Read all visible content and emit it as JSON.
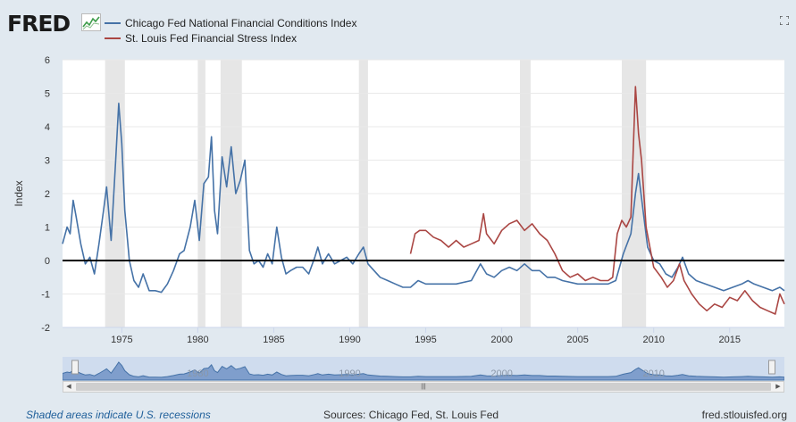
{
  "header": {
    "logo_text": "FRED",
    "legend": [
      {
        "label": "Chicago Fed National Financial Conditions Index",
        "color": "#4572a7"
      },
      {
        "label": "St. Louis Fed Financial Stress Index",
        "color": "#aa4643"
      }
    ]
  },
  "footer": {
    "recession_note": "Shaded areas indicate U.S. recessions",
    "sources": "Sources: Chicago Fed, St. Louis Fed",
    "site": "fred.stlouisfed.org"
  },
  "navigator": {
    "tick_labels": [
      "1980",
      "1990",
      "2000",
      "2010"
    ]
  },
  "chart_data": {
    "type": "line",
    "ylabel": "Index",
    "ylim": [
      -2,
      6
    ],
    "xlim": [
      1971.1,
      2018.6
    ],
    "y_ticks": [
      -2,
      -1,
      0,
      1,
      2,
      3,
      4,
      5,
      6
    ],
    "x_ticks": [
      1975,
      1980,
      1985,
      1990,
      1995,
      2000,
      2005,
      2010,
      2015
    ],
    "grid": "horizontal",
    "legend_position": "top-left",
    "recessions": [
      [
        1973.9,
        1975.2
      ],
      [
        1980.0,
        1980.5
      ],
      [
        1981.5,
        1982.9
      ],
      [
        1990.6,
        1991.2
      ],
      [
        2001.2,
        2001.9
      ],
      [
        2007.9,
        2009.5
      ]
    ],
    "series": [
      {
        "name": "Chicago Fed National Financial Conditions Index",
        "color": "#4572a7",
        "points": [
          [
            1971.1,
            0.5
          ],
          [
            1971.4,
            1.0
          ],
          [
            1971.6,
            0.8
          ],
          [
            1971.8,
            1.8
          ],
          [
            1972.0,
            1.3
          ],
          [
            1972.3,
            0.5
          ],
          [
            1972.6,
            -0.1
          ],
          [
            1972.9,
            0.1
          ],
          [
            1973.2,
            -0.4
          ],
          [
            1973.5,
            0.5
          ],
          [
            1973.8,
            1.5
          ],
          [
            1974.0,
            2.2
          ],
          [
            1974.3,
            0.6
          ],
          [
            1974.6,
            3.0
          ],
          [
            1974.8,
            4.7
          ],
          [
            1975.0,
            3.5
          ],
          [
            1975.2,
            1.5
          ],
          [
            1975.5,
            0.0
          ],
          [
            1975.8,
            -0.6
          ],
          [
            1976.1,
            -0.8
          ],
          [
            1976.4,
            -0.4
          ],
          [
            1976.8,
            -0.9
          ],
          [
            1977.2,
            -0.9
          ],
          [
            1977.6,
            -0.95
          ],
          [
            1978.0,
            -0.7
          ],
          [
            1978.4,
            -0.3
          ],
          [
            1978.8,
            0.2
          ],
          [
            1979.1,
            0.3
          ],
          [
            1979.5,
            1.0
          ],
          [
            1979.8,
            1.8
          ],
          [
            1980.1,
            0.6
          ],
          [
            1980.4,
            2.3
          ],
          [
            1980.7,
            2.5
          ],
          [
            1980.9,
            3.7
          ],
          [
            1981.1,
            1.5
          ],
          [
            1981.3,
            0.8
          ],
          [
            1981.6,
            3.1
          ],
          [
            1981.9,
            2.2
          ],
          [
            1982.2,
            3.4
          ],
          [
            1982.5,
            2.0
          ],
          [
            1982.8,
            2.4
          ],
          [
            1983.1,
            3.0
          ],
          [
            1983.4,
            0.3
          ],
          [
            1983.7,
            -0.1
          ],
          [
            1984.0,
            0.0
          ],
          [
            1984.3,
            -0.2
          ],
          [
            1984.6,
            0.2
          ],
          [
            1984.9,
            -0.1
          ],
          [
            1985.2,
            1.0
          ],
          [
            1985.5,
            0.1
          ],
          [
            1985.8,
            -0.4
          ],
          [
            1986.1,
            -0.3
          ],
          [
            1986.5,
            -0.2
          ],
          [
            1986.9,
            -0.2
          ],
          [
            1987.3,
            -0.4
          ],
          [
            1987.7,
            0.1
          ],
          [
            1987.9,
            0.4
          ],
          [
            1988.2,
            -0.1
          ],
          [
            1988.6,
            0.2
          ],
          [
            1989.0,
            -0.1
          ],
          [
            1989.4,
            0.0
          ],
          [
            1989.8,
            0.1
          ],
          [
            1990.2,
            -0.1
          ],
          [
            1990.6,
            0.2
          ],
          [
            1990.9,
            0.4
          ],
          [
            1991.2,
            -0.1
          ],
          [
            1991.6,
            -0.3
          ],
          [
            1992.0,
            -0.5
          ],
          [
            1992.5,
            -0.6
          ],
          [
            1993.0,
            -0.7
          ],
          [
            1993.5,
            -0.8
          ],
          [
            1994.0,
            -0.8
          ],
          [
            1994.5,
            -0.6
          ],
          [
            1995.0,
            -0.7
          ],
          [
            1996.0,
            -0.7
          ],
          [
            1997.0,
            -0.7
          ],
          [
            1998.0,
            -0.6
          ],
          [
            1998.6,
            -0.1
          ],
          [
            1999.0,
            -0.4
          ],
          [
            1999.5,
            -0.5
          ],
          [
            2000.0,
            -0.3
          ],
          [
            2000.5,
            -0.2
          ],
          [
            2001.0,
            -0.3
          ],
          [
            2001.5,
            -0.1
          ],
          [
            2002.0,
            -0.3
          ],
          [
            2002.5,
            -0.3
          ],
          [
            2003.0,
            -0.5
          ],
          [
            2003.5,
            -0.5
          ],
          [
            2004.0,
            -0.6
          ],
          [
            2005.0,
            -0.7
          ],
          [
            2006.0,
            -0.7
          ],
          [
            2007.0,
            -0.7
          ],
          [
            2007.5,
            -0.6
          ],
          [
            2008.0,
            0.2
          ],
          [
            2008.5,
            0.8
          ],
          [
            2008.8,
            2.0
          ],
          [
            2009.0,
            2.6
          ],
          [
            2009.3,
            1.5
          ],
          [
            2009.6,
            0.4
          ],
          [
            2010.0,
            0.0
          ],
          [
            2010.4,
            -0.1
          ],
          [
            2010.8,
            -0.4
          ],
          [
            2011.2,
            -0.5
          ],
          [
            2011.6,
            -0.2
          ],
          [
            2011.9,
            0.1
          ],
          [
            2012.3,
            -0.4
          ],
          [
            2012.8,
            -0.6
          ],
          [
            2013.4,
            -0.7
          ],
          [
            2014.0,
            -0.8
          ],
          [
            2014.6,
            -0.9
          ],
          [
            2015.2,
            -0.8
          ],
          [
            2015.8,
            -0.7
          ],
          [
            2016.2,
            -0.6
          ],
          [
            2016.6,
            -0.7
          ],
          [
            2017.2,
            -0.8
          ],
          [
            2017.8,
            -0.9
          ],
          [
            2018.3,
            -0.8
          ],
          [
            2018.6,
            -0.9
          ]
        ]
      },
      {
        "name": "St. Louis Fed Financial Stress Index",
        "color": "#aa4643",
        "points": [
          [
            1994.0,
            0.2
          ],
          [
            1994.3,
            0.8
          ],
          [
            1994.6,
            0.9
          ],
          [
            1995.0,
            0.9
          ],
          [
            1995.5,
            0.7
          ],
          [
            1996.0,
            0.6
          ],
          [
            1996.5,
            0.4
          ],
          [
            1997.0,
            0.6
          ],
          [
            1997.5,
            0.4
          ],
          [
            1998.0,
            0.5
          ],
          [
            1998.5,
            0.6
          ],
          [
            1998.8,
            1.4
          ],
          [
            1999.0,
            0.8
          ],
          [
            1999.5,
            0.5
          ],
          [
            2000.0,
            0.9
          ],
          [
            2000.5,
            1.1
          ],
          [
            2001.0,
            1.2
          ],
          [
            2001.5,
            0.9
          ],
          [
            2002.0,
            1.1
          ],
          [
            2002.5,
            0.8
          ],
          [
            2003.0,
            0.6
          ],
          [
            2003.5,
            0.2
          ],
          [
            2004.0,
            -0.3
          ],
          [
            2004.5,
            -0.5
          ],
          [
            2005.0,
            -0.4
          ],
          [
            2005.5,
            -0.6
          ],
          [
            2006.0,
            -0.5
          ],
          [
            2006.5,
            -0.6
          ],
          [
            2007.0,
            -0.6
          ],
          [
            2007.3,
            -0.5
          ],
          [
            2007.6,
            0.8
          ],
          [
            2007.9,
            1.2
          ],
          [
            2008.2,
            1.0
          ],
          [
            2008.5,
            1.3
          ],
          [
            2008.8,
            5.2
          ],
          [
            2009.0,
            3.8
          ],
          [
            2009.2,
            3.0
          ],
          [
            2009.5,
            1.0
          ],
          [
            2010.0,
            -0.2
          ],
          [
            2010.5,
            -0.5
          ],
          [
            2010.9,
            -0.8
          ],
          [
            2011.3,
            -0.6
          ],
          [
            2011.7,
            -0.1
          ],
          [
            2012.0,
            -0.6
          ],
          [
            2012.5,
            -1.0
          ],
          [
            2013.0,
            -1.3
          ],
          [
            2013.5,
            -1.5
          ],
          [
            2014.0,
            -1.3
          ],
          [
            2014.5,
            -1.4
          ],
          [
            2015.0,
            -1.1
          ],
          [
            2015.5,
            -1.2
          ],
          [
            2016.0,
            -0.9
          ],
          [
            2016.5,
            -1.2
          ],
          [
            2017.0,
            -1.4
          ],
          [
            2017.5,
            -1.5
          ],
          [
            2018.0,
            -1.6
          ],
          [
            2018.3,
            -1.0
          ],
          [
            2018.6,
            -1.3
          ]
        ]
      }
    ]
  }
}
